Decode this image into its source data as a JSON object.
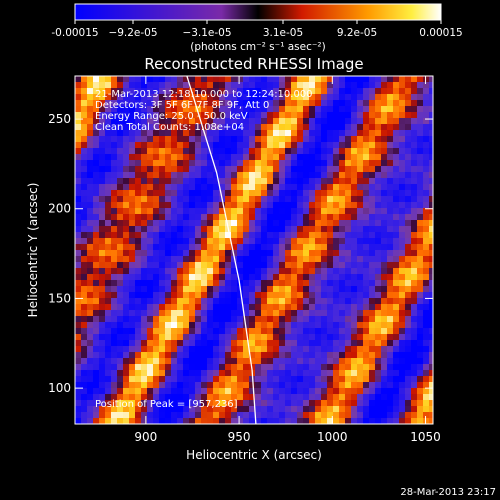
{
  "chart_data": {
    "type": "heatmap",
    "title": "Reconstructed RHESSI Image",
    "xlabel": "Heliocentric X (arcsec)",
    "ylabel": "Heliocentric Y (arcsec)",
    "xlim": [
      862,
      1054
    ],
    "ylim": [
      80,
      274
    ],
    "x_ticks": [
      900,
      950,
      1000,
      1050
    ],
    "y_ticks": [
      100,
      150,
      200,
      250
    ],
    "colorbar": {
      "min": -0.00015,
      "max": 0.00015,
      "tick_labels": [
        "-0.00015",
        "−9.2e-05",
        "−3.1e-05",
        "3.1e-05",
        "9.2e-05",
        "0.00015"
      ],
      "unit_label": "(photons cm⁻² s⁻¹ asec⁻²)"
    },
    "annotations": [
      "21-Mar-2013 12:18:10.000 to 12:24:10.000",
      "Detectors: 3F 5F 6F 7F 8F 9F, Att 0",
      "Energy Range: 25.0 - 50.0 keV",
      "Clean    Total Counts: 1.08e+04"
    ],
    "peak_label": "Position of Peak = [957,236]",
    "peak": [
      957,
      236
    ],
    "limb_curve": [
      [
        922,
        274
      ],
      [
        938,
        220
      ],
      [
        950,
        160
      ],
      [
        957,
        110
      ],
      [
        959,
        80
      ]
    ]
  },
  "footer": {
    "timestamp": "28-Mar-2013 23:17"
  }
}
